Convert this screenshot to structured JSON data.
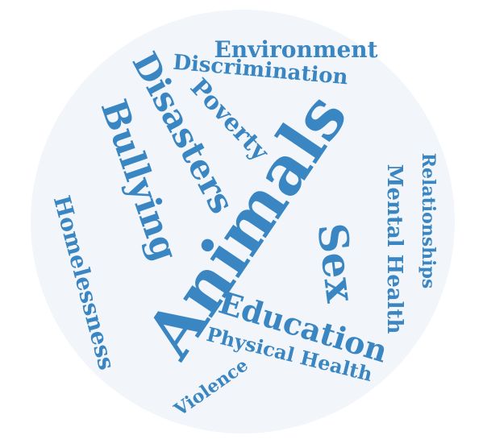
{
  "palette": {
    "word": "#3a86c2",
    "disc": "#f2f6fa",
    "background": "#ffffff"
  },
  "words": [
    "Environment",
    "Discrimination",
    "Poverty",
    "Disasters",
    "Bullying",
    "Animals",
    "Sex",
    "Mental Health",
    "Relationships",
    "Homelessness",
    "Education",
    "Physical Health",
    "Violence"
  ]
}
